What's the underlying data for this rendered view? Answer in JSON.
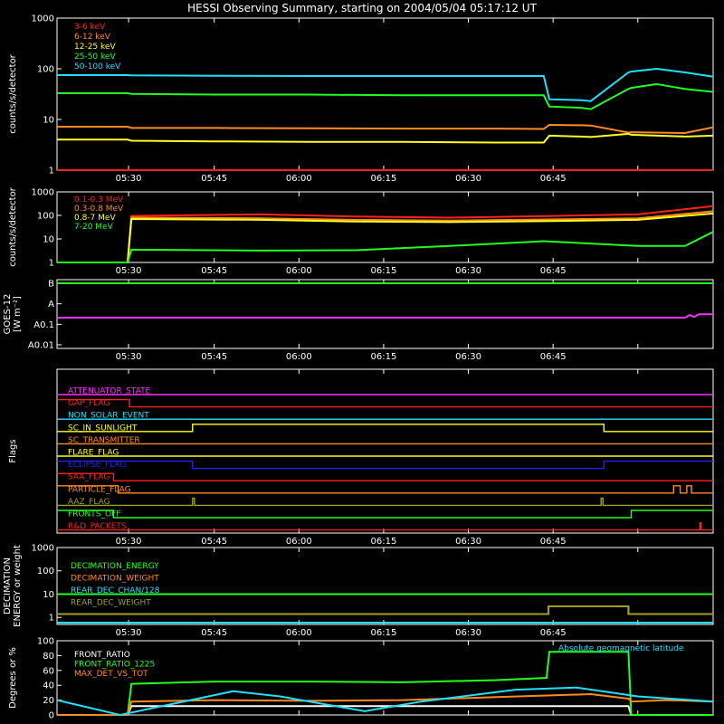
{
  "title": "HESSI Observing Summary, starting on 2004/05/04 05:17:12 UT",
  "time_ticks": [
    "05:30",
    "05:45",
    "06:00",
    "06:15",
    "06:30",
    "06:45"
  ],
  "chart_data": [
    {
      "type": "line",
      "panel": "rate-panel",
      "ylabel": "counts/s/detector",
      "yscale": "log",
      "ylim": [
        1,
        1000
      ],
      "yticks": [
        "1",
        "10",
        "100",
        "1000"
      ],
      "xlabels": [
        "05:30",
        "05:45",
        "06:00",
        "06:15",
        "06:30",
        "06:45"
      ],
      "series": [
        {
          "name": "3-6 keV",
          "color": "#ff2020",
          "x": [
            330,
            560,
            561,
            5080,
            5081,
            5490,
            5491,
            5520,
            5521,
            5730,
            5731,
            5800,
            5800,
            6040,
            6041,
            6600,
            6601,
            7190,
            7191,
            7300
          ],
          "values": [
            1,
            1,
            1,
            1,
            1,
            1,
            1,
            1,
            1,
            1,
            1,
            1,
            1,
            1,
            1,
            1,
            1,
            1,
            1,
            1
          ]
        },
        {
          "name": "6-12 keV",
          "color": "#ff8a20",
          "x": [
            330,
            1080,
            1120,
            2000,
            3000,
            4000,
            5000,
            5500,
            5560,
            5900,
            6000,
            6400,
            6430,
            7000,
            7300
          ],
          "values": [
            7.2,
            7.2,
            6.8,
            6.8,
            6.7,
            6.6,
            6.6,
            6.5,
            7.8,
            7.7,
            7.6,
            5.5,
            5.6,
            5.4,
            7.0
          ]
        },
        {
          "name": "12-25 keV",
          "color": "#ffff20",
          "x": [
            330,
            1080,
            1120,
            2000,
            3000,
            4000,
            5000,
            5500,
            5560,
            5900,
            6000,
            6400,
            6430,
            7000,
            7300
          ],
          "values": [
            4.0,
            4.0,
            3.8,
            3.7,
            3.6,
            3.6,
            3.5,
            3.5,
            4.8,
            4.6,
            4.5,
            5.2,
            5.0,
            4.6,
            4.8
          ]
        },
        {
          "name": "25-50 keV",
          "color": "#20ff20",
          "x": [
            330,
            1080,
            1120,
            2000,
            3000,
            4000,
            5000,
            5500,
            5560,
            5900,
            6000,
            6400,
            6430,
            6700,
            7000,
            7300
          ],
          "values": [
            33,
            33,
            32,
            31,
            31,
            30,
            30,
            30,
            18,
            17,
            16,
            40,
            42,
            50,
            40,
            35
          ]
        },
        {
          "name": "50-100 keV",
          "color": "#20e0ff",
          "x": [
            330,
            1080,
            1120,
            2000,
            3000,
            4000,
            5000,
            5500,
            5560,
            5900,
            6000,
            6400,
            6430,
            6700,
            7000,
            7300
          ],
          "values": [
            75,
            75,
            74,
            73,
            72,
            72,
            72,
            72,
            25,
            24,
            23,
            85,
            88,
            100,
            85,
            70
          ]
        }
      ]
    },
    {
      "type": "line",
      "panel": "high-energy-panel",
      "ylabel": "counts/s/detector",
      "yscale": "log",
      "ylim": [
        1,
        1000
      ],
      "yticks": [
        "1",
        "10",
        "100",
        "1000"
      ],
      "series": [
        {
          "name": "0.1-0.3 MeV",
          "color": "#ff2020",
          "x": [
            330,
            1080,
            1120,
            2500,
            3500,
            4500,
            5600,
            6500,
            7300
          ],
          "values": [
            1,
            1,
            95,
            110,
            90,
            80,
            95,
            110,
            250
          ]
        },
        {
          "name": "0.3-0.8 MeV",
          "color": "#ff8a20",
          "x": [
            330,
            1080,
            1120,
            2500,
            3500,
            4500,
            5600,
            6500,
            7300
          ],
          "values": [
            1,
            1,
            80,
            75,
            65,
            60,
            68,
            75,
            150
          ]
        },
        {
          "name": "0.8-7 MeV",
          "color": "#ffff20",
          "x": [
            330,
            1080,
            1120,
            2500,
            3500,
            4500,
            5600,
            6500,
            7300
          ],
          "values": [
            1,
            1,
            70,
            65,
            55,
            52,
            58,
            65,
            120
          ]
        },
        {
          "name": "7-20 MeV",
          "color": "#20ff20",
          "x": [
            330,
            1080,
            1120,
            2500,
            3500,
            4500,
            5500,
            6500,
            7000,
            7300
          ],
          "values": [
            1,
            1,
            3.5,
            3.2,
            3.3,
            5.0,
            8.0,
            5.0,
            5.0,
            20
          ]
        }
      ]
    },
    {
      "type": "line",
      "panel": "goes-panel",
      "ylabel": "GOES-12",
      "ylabel2": "[W m⁻²]",
      "yticks": [
        "A0.01",
        "A0.1",
        "A",
        "B"
      ],
      "series": [
        {
          "color": "#ff30ff",
          "x": [
            330,
            7000,
            7050,
            7100,
            7150,
            7300
          ],
          "values": [
            1,
            1,
            1.15,
            1.05,
            1.2,
            1.2
          ]
        },
        {
          "color": "#20ff20",
          "x": [
            330,
            7300
          ],
          "values": [
            3,
            3
          ]
        }
      ]
    },
    {
      "type": "line",
      "panel": "flags-panel",
      "ylabel": "Flags",
      "series": [
        {
          "name": "ATTENUATOR_STATE",
          "color": "#ff30ff",
          "x": [
            330,
            7300
          ],
          "values": [
            0,
            0
          ]
        },
        {
          "name": "GAP_FLAG",
          "color": "#ff2020",
          "x": [
            330,
            1100,
            1100,
            7300
          ],
          "values": [
            1,
            1,
            0,
            0
          ]
        },
        {
          "name": "NON_SOLAR_EVENT",
          "color": "#20e0ff",
          "x": [
            330,
            7300
          ],
          "values": [
            0,
            0
          ]
        },
        {
          "name": "SC_IN_SUNLIGHT",
          "color": "#ffff20",
          "x": [
            330,
            1770,
            1770,
            6140,
            6140,
            7300
          ],
          "values": [
            0,
            0,
            1,
            1,
            0,
            0
          ]
        },
        {
          "name": "SC_TRANSMITTER",
          "color": "#ff8a20",
          "x": [
            330,
            7300
          ],
          "values": [
            0,
            0
          ]
        },
        {
          "name": "FLARE_FLAG",
          "color": "#ffff20",
          "x": [
            330,
            7300
          ],
          "values": [
            0,
            0
          ]
        },
        {
          "name": "ECLIPSE_FLAG",
          "color": "#2020ff",
          "x": [
            330,
            1770,
            1770,
            6140,
            6140,
            7300
          ],
          "values": [
            1,
            1,
            0,
            0,
            1,
            1
          ]
        },
        {
          "name": "SAA_FLAG",
          "color": "#ff2020",
          "x": [
            330,
            930,
            930,
            7300
          ],
          "values": [
            1,
            1,
            0,
            0
          ]
        },
        {
          "name": "PARTICLE_FLAG",
          "color": "#ff8a20",
          "x": [
            330,
            980,
            980,
            6880,
            6880,
            6950,
            6950,
            7020,
            7020,
            7070,
            7070,
            7300
          ],
          "values": [
            1,
            1,
            0,
            0,
            1,
            1,
            0,
            0,
            1,
            1,
            0,
            0
          ]
        },
        {
          "name": "AAZ_FLAG",
          "color": "#a0a020",
          "x": [
            330,
            1770,
            1770,
            1790,
            1790,
            6110,
            6110,
            6130,
            6130,
            7300
          ],
          "values": [
            0,
            0,
            1,
            1,
            0,
            0,
            1,
            1,
            0,
            0
          ]
        },
        {
          "name": "FRONTS_OFF",
          "color": "#20ff20",
          "x": [
            330,
            930,
            930,
            6430,
            6430,
            7300
          ],
          "values": [
            1,
            1,
            0,
            0,
            1,
            1
          ]
        },
        {
          "name": "R&D_PACKETS",
          "color": "#ff2020",
          "x": [
            330,
            7160,
            7160,
            7170,
            7170,
            7300
          ],
          "values": [
            0,
            0,
            1,
            1,
            0,
            0
          ]
        }
      ]
    },
    {
      "type": "line",
      "panel": "decimation-panel",
      "ylabel": "DECIMATION",
      "ylabel2": "ENERGY or weight",
      "yscale": "log",
      "ylim": [
        0.5,
        1000
      ],
      "yticks": [
        "1",
        "10",
        "100",
        "1000"
      ],
      "series": [
        {
          "name": "DECIMATION_ENERGY",
          "color": "#20ff20",
          "x": [
            330,
            7300
          ],
          "values": [
            10,
            10
          ]
        },
        {
          "name": "DECIMATION_WEIGHT",
          "color": "#ff8a20",
          "x": [
            330,
            5550,
            5550,
            6400,
            6400,
            7300
          ],
          "values": [
            1.4,
            1.4,
            3,
            3,
            1.4,
            1.4
          ]
        },
        {
          "name": "REAR_DEC_CHAN/128",
          "color": "#20e0ff",
          "x": [
            330,
            7300
          ],
          "values": [
            0.6,
            0.6
          ]
        },
        {
          "name": "REAR_DEC_WEIGHT",
          "color": "#a0a020",
          "x": [
            330,
            5550,
            5550,
            6400,
            6400,
            7300
          ],
          "values": [
            1.4,
            1.4,
            3,
            3,
            1.4,
            1.4
          ]
        }
      ]
    },
    {
      "type": "line",
      "panel": "ratio-panel",
      "ylabel": "Degrees or %",
      "ylim": [
        0,
        100
      ],
      "yticks": [
        "0",
        "20",
        "40",
        "60",
        "80",
        "100"
      ],
      "annotation": "Absolute geomagnetic latitude",
      "series": [
        {
          "name": "FRONT_RATIO",
          "color": "#ffffff",
          "x": [
            330,
            1080,
            1120,
            3000,
            5000,
            6400,
            6430,
            7300
          ],
          "values": [
            0,
            0,
            12,
            12,
            12,
            12,
            0,
            0
          ]
        },
        {
          "name": "FRONT_RATIO_1225",
          "color": "#20ff20",
          "x": [
            330,
            1080,
            1120,
            2000,
            3000,
            4000,
            5000,
            5530,
            5560,
            6400,
            6430,
            7300
          ],
          "values": [
            0,
            0,
            42,
            45,
            45,
            44,
            47,
            50,
            85,
            85,
            0,
            0
          ]
        },
        {
          "name": "MAX_DET_VS_TOT",
          "color": "#ff8a20",
          "x": [
            330,
            1080,
            1120,
            2000,
            3000,
            4000,
            5000,
            6000,
            6400,
            6430,
            6800,
            7300
          ],
          "values": [
            0,
            0,
            18,
            20,
            19,
            20,
            24,
            28,
            22,
            18,
            20,
            18
          ]
        },
        {
          "name": "Absolute geomagnetic latitude",
          "color": "#20e0ff",
          "x": [
            330,
            1000,
            2200,
            2700,
            3600,
            4200,
            5200,
            5850,
            6500,
            7300
          ],
          "values": [
            20,
            0,
            32,
            25,
            5,
            18,
            34,
            37,
            25,
            18
          ]
        }
      ]
    }
  ]
}
